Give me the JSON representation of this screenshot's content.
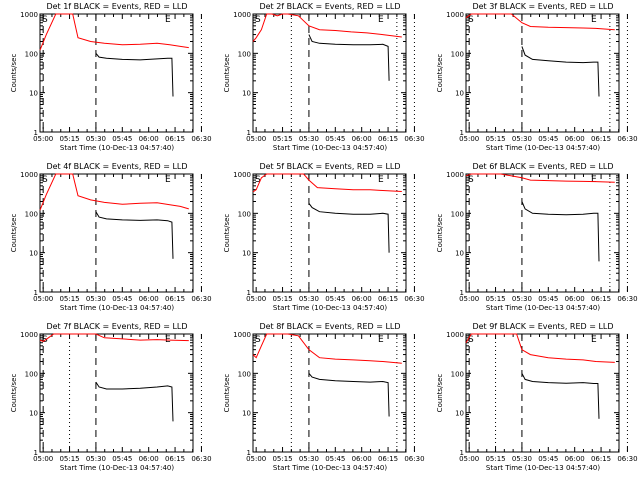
{
  "chart_data": [
    {
      "type": "line",
      "title": "Det 1f BLACK = Events, RED = LLD",
      "ylabel": "Counts/sec",
      "xlabel": "Start Time (10-Dec-13 04:57:40)",
      "x_ticks": [
        "05:00",
        "05:15",
        "05:30",
        "05:45",
        "06:00",
        "06:15",
        "06:30"
      ],
      "y_ticks": [
        "1",
        "10",
        "100",
        "1000"
      ],
      "ylim": [
        1,
        1000
      ],
      "y_scale": "log",
      "markers": [
        "S",
        "E"
      ],
      "dashed_lines": [
        "05:00",
        "05:30"
      ],
      "dotted_lines": [
        "06:30"
      ],
      "series": [
        {
          "name": "LLD",
          "color": "#ff0000",
          "x": [
            4.97,
            5.03,
            5.12,
            5.2,
            5.28,
            5.33,
            5.45,
            5.58,
            5.75,
            5.92,
            6.08,
            6.2,
            6.3,
            6.38
          ],
          "y": [
            120,
            300,
            1000,
            1000,
            1000,
            250,
            200,
            180,
            165,
            170,
            180,
            165,
            150,
            140
          ]
        },
        {
          "name": "Events",
          "color": "#000000",
          "x": [
            5.5,
            5.53,
            5.6,
            5.75,
            5.92,
            6.08,
            6.18,
            6.22,
            6.23
          ],
          "y": [
            100,
            80,
            75,
            70,
            68,
            72,
            75,
            75,
            8
          ]
        }
      ]
    },
    {
      "type": "line",
      "title": "Det 2f BLACK = Events, RED = LLD",
      "ylabel": "Counts/sec",
      "xlabel": "Start Time (10-Dec-13 04:57:40)",
      "x_ticks": [
        "05:00",
        "05:15",
        "05:30",
        "05:45",
        "06:00",
        "06:15",
        "06:30"
      ],
      "y_ticks": [
        "1",
        "10",
        "100",
        "1000"
      ],
      "ylim": [
        1,
        1000
      ],
      "y_scale": "log",
      "markers": [
        "S",
        "E"
      ],
      "dashed_lines": [
        "05:30"
      ],
      "dotted_lines": [
        "05:20",
        "06:20",
        "06:30"
      ],
      "series": [
        {
          "name": "LLD",
          "color": "#ff0000",
          "x": [
            4.97,
            5.0,
            5.05,
            5.1,
            5.15,
            5.2,
            5.25,
            5.3,
            5.4,
            5.5,
            5.6,
            5.75,
            5.9,
            6.05,
            6.2,
            6.38
          ],
          "y": [
            200,
            250,
            400,
            1000,
            1000,
            900,
            1000,
            1000,
            900,
            500,
            400,
            380,
            350,
            330,
            300,
            260
          ]
        },
        {
          "name": "Events",
          "color": "#000000",
          "x": [
            5.5,
            5.53,
            5.6,
            5.75,
            5.92,
            6.08,
            6.2,
            6.25,
            6.26
          ],
          "y": [
            300,
            200,
            180,
            170,
            165,
            165,
            170,
            150,
            20
          ]
        }
      ]
    },
    {
      "type": "line",
      "title": "Det 3f BLACK = Events, RED = LLD",
      "ylabel": "Counts/sec",
      "xlabel": "Start Time (10-Dec-13 04:57:40)",
      "x_ticks": [
        "05:00",
        "05:15",
        "05:30",
        "05:45",
        "06:00",
        "06:15",
        "06:30"
      ],
      "y_ticks": [
        "1",
        "10",
        "100",
        "1000"
      ],
      "ylim": [
        1,
        1000
      ],
      "y_scale": "log",
      "markers": [
        "S",
        "E"
      ],
      "dashed_lines": [
        "05:00",
        "05:30"
      ],
      "dotted_lines": [
        "06:20",
        "06:30"
      ],
      "series": [
        {
          "name": "LLD",
          "color": "#ff0000",
          "x": [
            4.97,
            5.02,
            5.1,
            5.2,
            5.3,
            5.4,
            5.5,
            5.58,
            5.75,
            5.92,
            6.08,
            6.2,
            6.38
          ],
          "y": [
            800,
            1000,
            1000,
            1000,
            1000,
            1000,
            600,
            480,
            460,
            450,
            440,
            430,
            400
          ]
        },
        {
          "name": "Events",
          "color": "#000000",
          "x": [
            5.5,
            5.53,
            5.6,
            5.75,
            5.92,
            6.08,
            6.18,
            6.22,
            6.23
          ],
          "y": [
            150,
            90,
            70,
            65,
            60,
            58,
            60,
            60,
            8
          ]
        }
      ]
    },
    {
      "type": "line",
      "title": "Det 4f BLACK = Events, RED = LLD",
      "ylabel": "Counts/sec",
      "xlabel": "Start Time (10-Dec-13 04:57:40)",
      "x_ticks": [
        "05:00",
        "05:15",
        "05:30",
        "05:45",
        "06:00",
        "06:15",
        "06:30"
      ],
      "y_ticks": [
        "1",
        "10",
        "100",
        "1000"
      ],
      "ylim": [
        1,
        1000
      ],
      "y_scale": "log",
      "markers": [
        "S",
        "E"
      ],
      "dashed_lines": [
        "05:00",
        "05:30"
      ],
      "dotted_lines": [
        "06:30"
      ],
      "series": [
        {
          "name": "LLD",
          "color": "#ff0000",
          "x": [
            4.97,
            5.03,
            5.12,
            5.2,
            5.28,
            5.33,
            5.45,
            5.58,
            5.75,
            5.92,
            6.08,
            6.2,
            6.3,
            6.38
          ],
          "y": [
            120,
            300,
            1000,
            1000,
            1000,
            280,
            220,
            190,
            170,
            180,
            185,
            165,
            150,
            130
          ]
        },
        {
          "name": "Events",
          "color": "#000000",
          "x": [
            5.5,
            5.53,
            5.6,
            5.75,
            5.92,
            6.08,
            6.18,
            6.22,
            6.23
          ],
          "y": [
            110,
            80,
            72,
            68,
            66,
            68,
            65,
            60,
            7
          ]
        }
      ]
    },
    {
      "type": "line",
      "title": "Det 5f BLACK = Events, RED = LLD",
      "ylabel": "Counts/sec",
      "xlabel": "Start Time (10-Dec-13 04:57:40)",
      "x_ticks": [
        "05:00",
        "05:15",
        "05:30",
        "05:45",
        "06:00",
        "06:15",
        "06:30"
      ],
      "y_ticks": [
        "1",
        "10",
        "100",
        "1000"
      ],
      "ylim": [
        1,
        1000
      ],
      "y_scale": "log",
      "markers": [
        "S",
        "E"
      ],
      "dashed_lines": [
        "05:30"
      ],
      "dotted_lines": [
        "05:20",
        "06:20",
        "06:30"
      ],
      "series": [
        {
          "name": "LLD",
          "color": "#ff0000",
          "x": [
            4.97,
            5.0,
            5.05,
            5.1,
            5.3,
            5.45,
            5.5,
            5.58,
            5.75,
            5.92,
            6.08,
            6.2,
            6.38
          ],
          "y": [
            350,
            400,
            800,
            1000,
            1000,
            1000,
            700,
            450,
            420,
            400,
            400,
            380,
            360
          ]
        },
        {
          "name": "Events",
          "color": "#000000",
          "x": [
            5.5,
            5.53,
            5.6,
            5.75,
            5.92,
            6.08,
            6.2,
            6.25,
            6.26
          ],
          "y": [
            180,
            140,
            110,
            100,
            95,
            95,
            100,
            95,
            10
          ]
        }
      ]
    },
    {
      "type": "line",
      "title": "Det 6f BLACK = Events, RED = LLD",
      "ylabel": "Counts/sec",
      "xlabel": "Start Time (10-Dec-13 04:57:40)",
      "x_ticks": [
        "05:00",
        "05:15",
        "05:30",
        "05:45",
        "06:00",
        "06:15",
        "06:30"
      ],
      "y_ticks": [
        "1",
        "10",
        "100",
        "1000"
      ],
      "ylim": [
        1,
        1000
      ],
      "y_scale": "log",
      "markers": [
        "S",
        "E"
      ],
      "dashed_lines": [
        "05:00",
        "05:30"
      ],
      "dotted_lines": [
        "06:20",
        "06:30"
      ],
      "series": [
        {
          "name": "LLD",
          "color": "#ff0000",
          "x": [
            4.97,
            5.02,
            5.1,
            5.3,
            5.5,
            5.58,
            5.75,
            5.92,
            6.08,
            6.2,
            6.38
          ],
          "y": [
            900,
            1000,
            1000,
            1000,
            800,
            700,
            680,
            660,
            650,
            640,
            620
          ]
        },
        {
          "name": "Events",
          "color": "#000000",
          "x": [
            5.5,
            5.53,
            5.6,
            5.75,
            5.92,
            6.08,
            6.18,
            6.22,
            6.23
          ],
          "y": [
            200,
            130,
            100,
            95,
            92,
            95,
            100,
            100,
            6
          ]
        }
      ]
    },
    {
      "type": "line",
      "title": "Det 7f BLACK = Events, RED = LLD",
      "ylabel": "Counts/sec",
      "xlabel": "Start Time (10-Dec-13 04:57:40)",
      "x_ticks": [
        "05:00",
        "05:15",
        "05:30",
        "05:45",
        "06:00",
        "06:15",
        "06:30"
      ],
      "y_ticks": [
        "1",
        "10",
        "100",
        "1000"
      ],
      "ylim": [
        1,
        1000
      ],
      "y_scale": "log",
      "markers": [
        "S",
        "E"
      ],
      "dashed_lines": [
        "05:00",
        "05:30"
      ],
      "dotted_lines": [
        "05:15",
        "06:30"
      ],
      "series": [
        {
          "name": "LLD",
          "color": "#ff0000",
          "x": [
            4.97,
            5.0,
            5.05,
            5.1,
            5.3,
            5.5,
            5.58,
            5.75,
            5.92,
            6.08,
            6.2,
            6.38
          ],
          "y": [
            700,
            650,
            800,
            1000,
            1000,
            1000,
            800,
            750,
            700,
            720,
            700,
            680
          ]
        },
        {
          "name": "Events",
          "color": "#000000",
          "x": [
            5.5,
            5.53,
            5.6,
            5.75,
            5.92,
            6.08,
            6.18,
            6.22,
            6.23
          ],
          "y": [
            60,
            45,
            40,
            40,
            42,
            45,
            48,
            45,
            6
          ]
        }
      ]
    },
    {
      "type": "line",
      "title": "Det 8f BLACK = Events, RED = LLD",
      "ylabel": "Counts/sec",
      "xlabel": "Start Time (10-Dec-13 04:57:40)",
      "x_ticks": [
        "05:00",
        "05:15",
        "05:30",
        "05:45",
        "06:00",
        "06:15",
        "06:30"
      ],
      "y_ticks": [
        "1",
        "10",
        "100",
        "1000"
      ],
      "ylim": [
        1,
        1000
      ],
      "y_scale": "log",
      "markers": [
        "S",
        "E"
      ],
      "dashed_lines": [
        "05:30"
      ],
      "dotted_lines": [
        "05:20",
        "06:20",
        "06:30"
      ],
      "series": [
        {
          "name": "LLD",
          "color": "#ff0000",
          "x": [
            4.97,
            5.0,
            5.05,
            5.1,
            5.2,
            5.3,
            5.4,
            5.5,
            5.6,
            5.75,
            5.92,
            6.08,
            6.2,
            6.38
          ],
          "y": [
            300,
            250,
            500,
            1000,
            1000,
            1000,
            900,
            400,
            250,
            230,
            220,
            210,
            200,
            180
          ]
        },
        {
          "name": "Events",
          "color": "#000000",
          "x": [
            5.5,
            5.53,
            5.6,
            5.75,
            5.92,
            6.08,
            6.2,
            6.25,
            6.26
          ],
          "y": [
            100,
            80,
            70,
            65,
            62,
            60,
            62,
            58,
            8
          ]
        }
      ]
    },
    {
      "type": "line",
      "title": "Det 9f BLACK = Events, RED = LLD",
      "ylabel": "Counts/sec",
      "xlabel": "Start Time (10-Dec-13 04:57:40)",
      "x_ticks": [
        "05:00",
        "05:15",
        "05:30",
        "05:45",
        "06:00",
        "06:15",
        "06:30"
      ],
      "y_ticks": [
        "1",
        "10",
        "100",
        "1000"
      ],
      "ylim": [
        1,
        1000
      ],
      "y_scale": "log",
      "markers": [
        "S",
        "E"
      ],
      "dashed_lines": [
        "05:00",
        "05:30"
      ],
      "dotted_lines": [
        "05:15",
        "06:30"
      ],
      "series": [
        {
          "name": "LLD",
          "color": "#ff0000",
          "x": [
            4.97,
            5.02,
            5.1,
            5.3,
            5.45,
            5.5,
            5.58,
            5.75,
            5.92,
            6.08,
            6.2,
            6.38
          ],
          "y": [
            600,
            1000,
            1000,
            1000,
            1000,
            400,
            300,
            250,
            230,
            220,
            200,
            190
          ]
        },
        {
          "name": "Events",
          "color": "#000000",
          "x": [
            5.5,
            5.53,
            5.6,
            5.75,
            5.92,
            6.08,
            6.18,
            6.22,
            6.23
          ],
          "y": [
            100,
            70,
            62,
            58,
            56,
            58,
            55,
            55,
            7
          ]
        }
      ]
    }
  ]
}
